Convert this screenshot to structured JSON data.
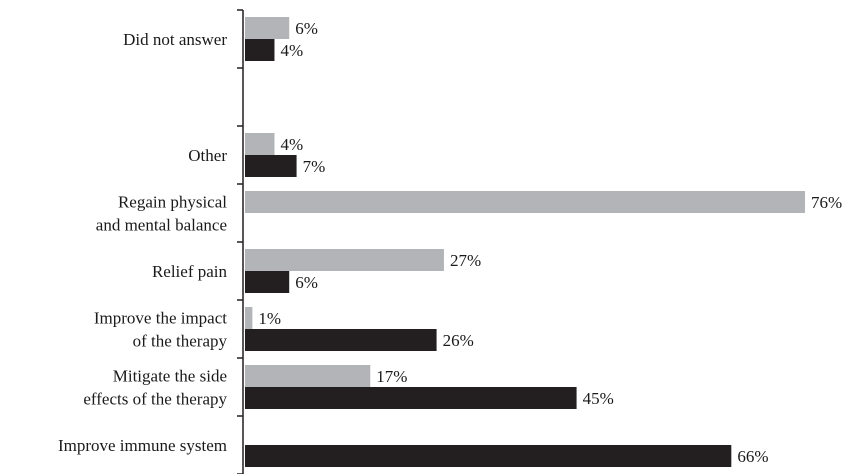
{
  "chart_data": {
    "type": "bar",
    "orientation": "horizontal",
    "categories": [
      [
        "Did not answer"
      ],
      [],
      [
        "Other"
      ],
      [
        "Regain physical",
        "and mental balance"
      ],
      [
        "Relief pain"
      ],
      [
        "Improve the impact",
        "of the therapy"
      ],
      [
        "Mitigate the side",
        "effects of the therapy"
      ],
      [
        "Improve immune system"
      ]
    ],
    "series": [
      {
        "color": "#b3b4b8",
        "values": [
          6,
          null,
          4,
          76,
          27,
          1,
          17,
          null
        ]
      },
      {
        "color": "#231f20",
        "values": [
          4,
          null,
          7,
          null,
          6,
          26,
          45,
          66
        ]
      }
    ],
    "value_labels": [
      [
        "6%",
        null,
        "4%",
        "76%",
        "27%",
        "1%",
        "17%",
        null
      ],
      [
        "4%",
        null,
        "7%",
        null,
        "6%",
        "26%",
        "45%",
        "66%"
      ]
    ],
    "xlim": [
      0,
      76
    ],
    "axis_color": "#231f20",
    "title": "",
    "xlabel": "",
    "ylabel": "",
    "legend": "none",
    "grid": false
  }
}
